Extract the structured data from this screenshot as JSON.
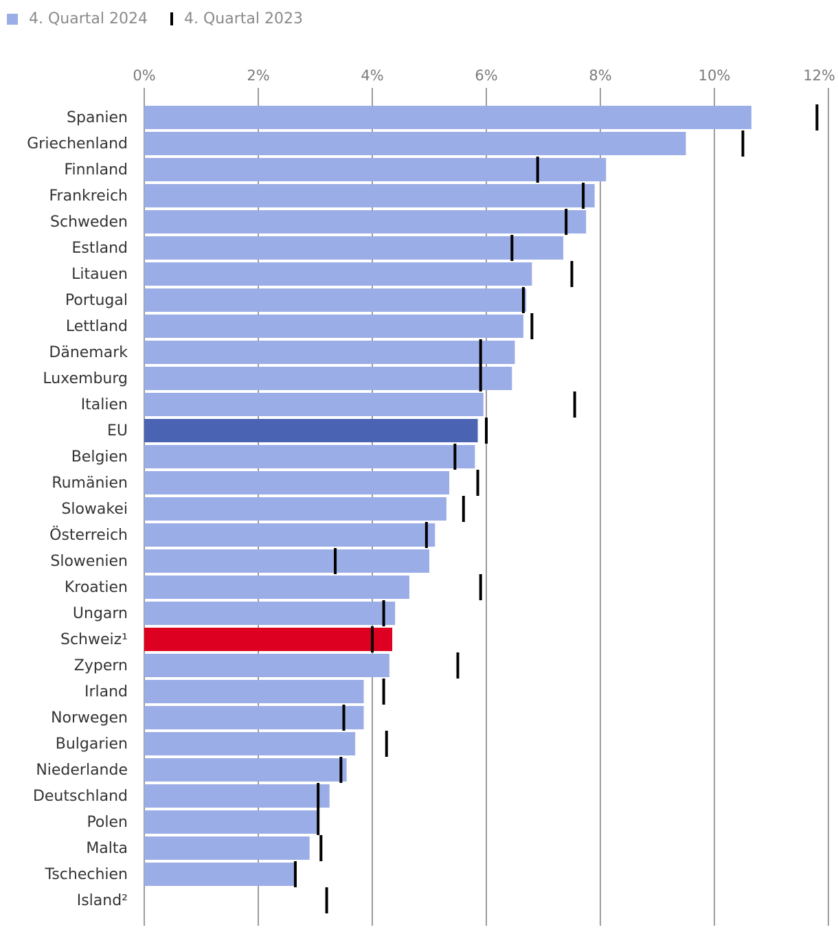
{
  "chart_data": {
    "type": "bar",
    "orientation": "horizontal",
    "title": "",
    "xlabel": "",
    "ylabel": "",
    "xlim": [
      0,
      12
    ],
    "tick_values": [
      0,
      2,
      4,
      6,
      8,
      10,
      12
    ],
    "tick_labels": [
      "0%",
      "2%",
      "4%",
      "6%",
      "8%",
      "10%",
      "12%"
    ],
    "grid": true,
    "legend_position": "top-left",
    "colors": {
      "bar": "#9badE6",
      "eu": "#4b63b3",
      "switzerland": "#dd0020",
      "marker": "#000000",
      "grid": "#9a9a9a"
    },
    "legend": [
      {
        "label": "4. Quartal 2024",
        "symbol": "square"
      },
      {
        "label": "4. Quartal 2023",
        "symbol": "tick"
      }
    ],
    "categories": [
      "Spanien",
      "Griechenland",
      "Finnland",
      "Frankreich",
      "Schweden",
      "Estland",
      "Litauen",
      "Portugal",
      "Lettland",
      "Dänemark",
      "Luxemburg",
      "Italien",
      "EU",
      "Belgien",
      "Rumänien",
      "Slowakei",
      "Österreich",
      "Slowenien",
      "Kroatien",
      "Ungarn",
      "Schweiz¹",
      "Zypern",
      "Irland",
      "Norwegen",
      "Bulgarien",
      "Niederlande",
      "Deutschland",
      "Polen",
      "Malta",
      "Tschechien",
      "Island²"
    ],
    "highlight": {
      "EU": "eu",
      "Schweiz¹": "switzerland"
    },
    "series": [
      {
        "name": "4. Quartal 2024",
        "mark": "bar",
        "values": [
          10.65,
          9.5,
          8.1,
          7.9,
          7.75,
          7.35,
          6.8,
          6.7,
          6.65,
          6.5,
          6.45,
          5.95,
          5.85,
          5.8,
          5.35,
          5.3,
          5.1,
          5.0,
          4.65,
          4.4,
          4.35,
          4.3,
          3.85,
          3.85,
          3.7,
          3.55,
          3.25,
          3.05,
          2.9,
          2.65,
          null
        ]
      },
      {
        "name": "4. Quartal 2023",
        "mark": "tick",
        "values": [
          11.8,
          10.5,
          6.9,
          7.7,
          7.4,
          6.45,
          7.5,
          6.65,
          6.8,
          5.9,
          5.9,
          7.55,
          6.0,
          5.45,
          5.85,
          5.6,
          4.95,
          3.35,
          5.9,
          4.2,
          4.0,
          5.5,
          4.2,
          3.5,
          4.25,
          3.45,
          3.05,
          3.05,
          3.1,
          2.65,
          3.2
        ]
      }
    ]
  }
}
